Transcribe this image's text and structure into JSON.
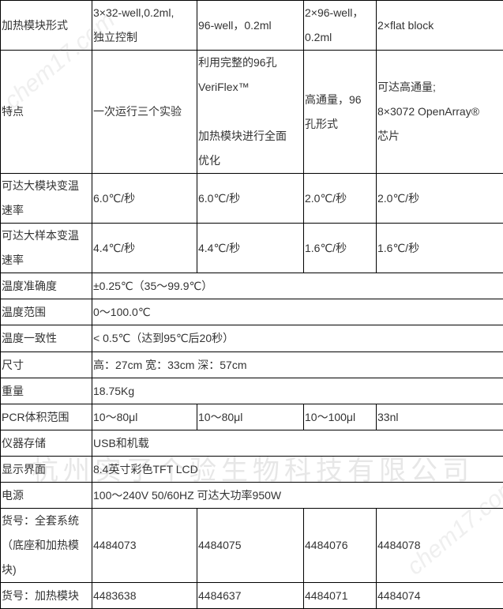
{
  "rows": [
    [
      {
        "t": "加热模块形式"
      },
      {
        "t": "3×32-well,0.2ml,\n独立控制"
      },
      {
        "t": "96-well，0.2ml"
      },
      {
        "t": "2×96-well，\n0.2ml"
      },
      {
        "t": "2×flat block"
      }
    ],
    [
      {
        "t": "特点"
      },
      {
        "t": "一次运行三个实验"
      },
      {
        "t": "利用完整的96孔\nVeriFlex™\n\n加热模块进行全面\n优化"
      },
      {
        "t": "高通量，96\n孔形式"
      },
      {
        "t": "可达高通量;\n8×3072  OpenArray®\n芯片"
      }
    ],
    [
      {
        "t": "可达大模块变温\n速率"
      },
      {
        "t": "6.0℃/秒"
      },
      {
        "t": "6.0℃/秒"
      },
      {
        "t": "2.0℃/秒"
      },
      {
        "t": "2.0℃/秒"
      }
    ],
    [
      {
        "t": "可达大样本变温\n速率"
      },
      {
        "t": "4.4℃/秒"
      },
      {
        "t": "4.4℃/秒"
      },
      {
        "t": "1.6℃/秒"
      },
      {
        "t": "1.6℃/秒"
      }
    ],
    [
      {
        "t": "温度准确度"
      },
      {
        "t": "±0.25℃（35～99.9℃）",
        "span": 4
      }
    ],
    [
      {
        "t": "温度范围"
      },
      {
        "t": "0～100.0℃",
        "span": 4
      }
    ],
    [
      {
        "t": "温度一致性"
      },
      {
        "t": "< 0.5℃（达到95℃后20秒）",
        "span": 4
      }
    ],
    [
      {
        "t": "尺寸"
      },
      {
        "t": "高：27cm  宽：33cm  深：57cm",
        "span": 4
      }
    ],
    [
      {
        "t": "重量"
      },
      {
        "t": "18.75Kg",
        "span": 4
      }
    ],
    [
      {
        "t": "PCR体积范围"
      },
      {
        "t": "10～80μl"
      },
      {
        "t": "10～80μl"
      },
      {
        "t": "10～100μl"
      },
      {
        "t": "33nl"
      }
    ],
    [
      {
        "t": "仪器存储"
      },
      {
        "t": "USB和机载",
        "span": 4
      }
    ],
    [
      {
        "t": "显示界面"
      },
      {
        "t": "8.4英寸彩色TFT LCD",
        "span": 4
      }
    ],
    [
      {
        "t": "电源"
      },
      {
        "t": "100～240V  50/60HZ  可达大功率950W",
        "span": 4
      }
    ],
    [
      {
        "t": "货号：全套系统\n（底座和加热模\n块)"
      },
      {
        "t": "4484073"
      },
      {
        "t": "4484075"
      },
      {
        "t": "4484076"
      },
      {
        "t": "4484078"
      }
    ],
    [
      {
        "t": "货号：加热模块"
      },
      {
        "t": "4483638"
      },
      {
        "t": "4484637"
      },
      {
        "t": "4484071"
      },
      {
        "t": "4484074"
      }
    ]
  ],
  "watermark": "杭州实了个验生物科技有限公司",
  "watermark_site": "chem17.com"
}
